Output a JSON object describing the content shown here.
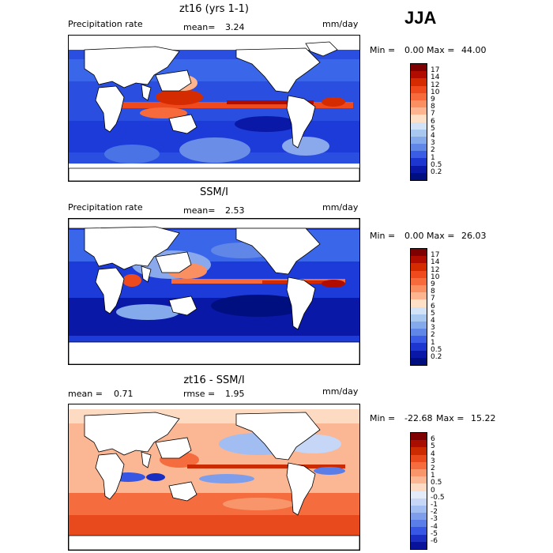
{
  "season": "JJA",
  "panels": [
    {
      "title": "zt16 (yrs 1-1)",
      "left_label": "Precipitation rate",
      "stat_label": "mean=",
      "stat_value": "3.24",
      "stat2_label": "",
      "stat2_value": "",
      "units": "mm/day",
      "min_label": "Min =",
      "min_value": "0.00",
      "max_label": "Max =",
      "max_value": "44.00",
      "colorbar": {
        "labels": [
          "17",
          "14",
          "12",
          "10",
          "9",
          "8",
          "7",
          "6",
          "5",
          "4",
          "3",
          "2",
          "1",
          "0.5",
          "0.2"
        ],
        "colors": [
          "#7f0000",
          "#b00d00",
          "#d52b00",
          "#ef4a1e",
          "#f76a3b",
          "#fa8f62",
          "#fcb58e",
          "#fde0c5",
          "#d2e3f7",
          "#a9c8f0",
          "#84aaeb",
          "#6086e8",
          "#3b5de6",
          "#1d36cf",
          "#0a18a8",
          "#000f80"
        ]
      }
    },
    {
      "title": "SSM/I",
      "left_label": "Precipitation rate",
      "stat_label": "mean=",
      "stat_value": "2.53",
      "stat2_label": "",
      "stat2_value": "",
      "units": "mm/day",
      "min_label": "Min =",
      "min_value": "0.00",
      "max_label": "Max =",
      "max_value": "26.03",
      "colorbar": {
        "labels": [
          "17",
          "14",
          "12",
          "10",
          "9",
          "8",
          "7",
          "6",
          "5",
          "4",
          "3",
          "2",
          "1",
          "0.5",
          "0.2"
        ],
        "colors": [
          "#7f0000",
          "#b00d00",
          "#d52b00",
          "#ef4a1e",
          "#f76a3b",
          "#fa8f62",
          "#fcb58e",
          "#fde0c5",
          "#d2e3f7",
          "#a9c8f0",
          "#84aaeb",
          "#6086e8",
          "#3b5de6",
          "#1d36cf",
          "#0a18a8",
          "#000f80"
        ]
      }
    },
    {
      "title": "zt16 - SSM/I",
      "left_label": "mean =",
      "left_value": "0.71",
      "stat_label": "rmse =",
      "stat_value": "1.95",
      "units": "mm/day",
      "min_label": "Min =",
      "min_value": "-22.68",
      "max_label": "Max =",
      "max_value": "15.22",
      "colorbar": {
        "labels": [
          "6",
          "5",
          "4",
          "3",
          "2",
          "1",
          "0.5",
          "0",
          "-0.5",
          "-1",
          "-2",
          "-3",
          "-4",
          "-5",
          "-6"
        ],
        "colors": [
          "#7f0000",
          "#a80f00",
          "#cc2a00",
          "#e84a1e",
          "#f56c3e",
          "#f9956a",
          "#fbb694",
          "#fddac2",
          "#e4ecfa",
          "#c5d6f6",
          "#a2bdf1",
          "#7e9eec",
          "#5a7de8",
          "#3656e3",
          "#1a2fc2",
          "#08139a"
        ]
      }
    }
  ]
}
